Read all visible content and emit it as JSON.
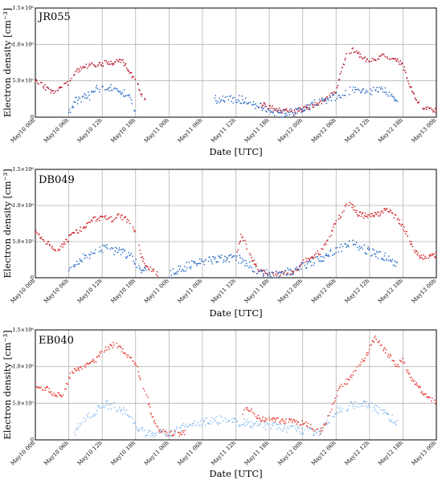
{
  "chart_data": [
    {
      "type": "scatter",
      "title": "JR055",
      "xlabel": "Date [UTC]",
      "ylabel": "Electron density [cm⁻³]",
      "ylim": [
        0,
        1500000
      ],
      "yticks": [
        "0",
        "5.0×10⁵",
        "1.0×10⁶",
        "1.5×10⁶"
      ],
      "xlim_hours": [
        0,
        72
      ],
      "xticks": [
        "May10 00h",
        "May10 06h",
        "May10 12h",
        "May10 18h",
        "May11 00h",
        "May11 06h",
        "May11 12h",
        "May11 18h",
        "May12 00h",
        "May12 06h",
        "May12 12h",
        "May12 18h",
        "May13 00h"
      ],
      "grid": true,
      "series": [
        {
          "color": "#b5172c",
          "x": [
            0,
            1,
            2,
            3,
            4,
            5,
            6,
            7,
            8,
            9,
            10,
            11,
            12,
            13,
            14,
            15,
            16,
            17,
            18,
            19,
            20,
            40,
            41,
            42,
            43,
            44,
            45,
            46,
            47,
            48,
            49,
            50,
            51,
            52,
            53,
            54,
            55,
            56,
            57,
            58,
            59,
            60,
            61,
            62,
            63,
            64,
            65,
            66,
            67,
            68,
            69,
            70,
            71,
            72
          ],
          "y": [
            500000,
            450000,
            400000,
            340000,
            380000,
            440000,
            460000,
            600000,
            660000,
            690000,
            740000,
            720000,
            720000,
            760000,
            740000,
            800000,
            740000,
            600000,
            540000,
            300000,
            200000,
            170000,
            160000,
            140000,
            110000,
            90000,
            80000,
            70000,
            80000,
            110000,
            130000,
            160000,
            200000,
            250000,
            300000,
            380000,
            650000,
            890000,
            920000,
            880000,
            800000,
            790000,
            800000,
            830000,
            850000,
            820000,
            800000,
            700000,
            500000,
            300000,
            200000,
            120000,
            100000,
            80000
          ]
        },
        {
          "color": "#2b6cc4",
          "x": [
            6,
            7,
            8,
            9,
            10,
            11,
            12,
            13,
            14,
            15,
            16,
            17,
            18,
            24,
            32,
            35,
            36,
            37,
            38,
            39,
            40,
            41,
            42,
            43,
            44,
            45,
            46,
            47,
            48,
            49,
            50,
            51,
            52,
            53,
            54,
            55,
            56,
            57,
            58,
            59,
            60,
            61,
            62,
            63,
            64,
            65
          ],
          "y": [
            80000,
            200000,
            260000,
            280000,
            300000,
            400000,
            380000,
            380000,
            400000,
            360000,
            330000,
            250000,
            120000,
            150000,
            240000,
            250000,
            240000,
            240000,
            200000,
            170000,
            150000,
            120000,
            90000,
            70000,
            50000,
            50000,
            60000,
            80000,
            110000,
            150000,
            180000,
            200000,
            220000,
            260000,
            290000,
            320000,
            340000,
            400000,
            360000,
            330000,
            350000,
            380000,
            380000,
            340000,
            280000,
            200000
          ]
        }
      ]
    },
    {
      "type": "scatter",
      "title": "DB049",
      "xlabel": "Date [UTC]",
      "ylabel": "Electron density [cm⁻³]",
      "ylim": [
        0,
        1500000
      ],
      "yticks": [
        "0",
        "5.0×10⁵",
        "1.0×10⁶",
        "1.5×10⁶"
      ],
      "xlim_hours": [
        0,
        72
      ],
      "xticks": [
        "May10 00h",
        "May10 06h",
        "May10 12h",
        "May10 18h",
        "May11 00h",
        "May11 06h",
        "May11 12h",
        "May11 18h",
        "May12 00h",
        "May12 06h",
        "May12 12h",
        "May12 18h",
        "May13 00h"
      ],
      "grid": true,
      "series": [
        {
          "color": "#d21f26",
          "x": [
            0,
            1,
            2,
            3,
            4,
            5,
            6,
            7,
            8,
            9,
            10,
            11,
            12,
            13,
            14,
            15,
            16,
            17,
            18,
            19,
            20,
            21,
            22,
            36,
            37,
            38,
            39,
            40,
            41,
            42,
            43,
            44,
            45,
            46,
            47,
            48,
            49,
            50,
            51,
            52,
            53,
            54,
            55,
            56,
            57,
            58,
            59,
            60,
            61,
            62,
            63,
            64,
            65,
            66,
            67,
            68,
            69,
            70,
            71,
            72
          ],
          "y": [
            620000,
            560000,
            500000,
            420000,
            400000,
            450000,
            550000,
            620000,
            660000,
            720000,
            800000,
            820000,
            830000,
            820000,
            800000,
            880000,
            820000,
            760000,
            600000,
            300000,
            150000,
            100000,
            50000,
            280000,
            600000,
            420000,
            250000,
            100000,
            60000,
            50000,
            50000,
            60000,
            60000,
            80000,
            120000,
            200000,
            260000,
            300000,
            350000,
            450000,
            600000,
            800000,
            880000,
            1050000,
            980000,
            880000,
            860000,
            860000,
            870000,
            880000,
            960000,
            900000,
            800000,
            700000,
            550000,
            400000,
            300000,
            280000,
            300000,
            320000
          ]
        },
        {
          "color": "#2b6cc4",
          "x": [
            6,
            7,
            8,
            9,
            10,
            11,
            12,
            13,
            14,
            15,
            16,
            17,
            18,
            19,
            20,
            24,
            25,
            26,
            27,
            28,
            29,
            30,
            31,
            32,
            33,
            34,
            35,
            36,
            37,
            38,
            39,
            40,
            41,
            42,
            43,
            44,
            45,
            46,
            47,
            48,
            49,
            50,
            51,
            52,
            53,
            54,
            55,
            56,
            57,
            58,
            59,
            60,
            61,
            62,
            63,
            64,
            65
          ],
          "y": [
            80000,
            200000,
            260000,
            300000,
            330000,
            360000,
            400000,
            400000,
            380000,
            360000,
            340000,
            300000,
            200000,
            120000,
            80000,
            40000,
            80000,
            120000,
            150000,
            180000,
            200000,
            220000,
            240000,
            250000,
            260000,
            270000,
            270000,
            260000,
            250000,
            200000,
            150000,
            100000,
            60000,
            50000,
            50000,
            60000,
            70000,
            90000,
            120000,
            160000,
            200000,
            230000,
            260000,
            300000,
            340000,
            380000,
            420000,
            480000,
            460000,
            420000,
            400000,
            360000,
            330000,
            300000,
            280000,
            240000,
            200000
          ]
        }
      ]
    },
    {
      "type": "scatter",
      "title": "EB040",
      "xlabel": "Date [UTC]",
      "ylabel": "Electron density [cm⁻³]",
      "ylim": [
        0,
        1500000
      ],
      "yticks": [
        "0",
        "5.0×10⁵",
        "1.0×10⁶",
        "1.5×10⁶"
      ],
      "xlim_hours": [
        0,
        72
      ],
      "xticks": [
        "May10 00h",
        "May10 06h",
        "May10 12h",
        "May10 18h",
        "May11 00h",
        "May11 06h",
        "May11 12h",
        "May11 18h",
        "May12 00h",
        "May12 06h",
        "May12 12h",
        "May12 18h",
        "May13 00h"
      ],
      "grid": true,
      "series": [
        {
          "color": "#e8392e",
          "x": [
            0,
            1,
            2,
            3,
            4,
            5,
            6,
            7,
            8,
            9,
            10,
            11,
            12,
            13,
            14,
            15,
            16,
            17,
            18,
            19,
            20,
            21,
            22,
            23,
            24,
            25,
            26,
            27,
            37,
            38,
            39,
            40,
            41,
            42,
            43,
            44,
            45,
            46,
            47,
            48,
            49,
            50,
            51,
            52,
            53,
            54,
            55,
            56,
            57,
            58,
            59,
            60,
            61,
            62,
            63,
            64,
            65,
            66,
            67,
            68,
            69,
            70,
            71,
            72
          ],
          "y": [
            760000,
            720000,
            700000,
            640000,
            620000,
            600000,
            850000,
            950000,
            980000,
            1000000,
            1050000,
            1100000,
            1200000,
            1250000,
            1300000,
            1280000,
            1200000,
            1120000,
            1050000,
            800000,
            600000,
            300000,
            150000,
            100000,
            80000,
            80000,
            90000,
            100000,
            350000,
            420000,
            380000,
            300000,
            280000,
            300000,
            280000,
            260000,
            250000,
            260000,
            240000,
            230000,
            200000,
            150000,
            100000,
            200000,
            400000,
            600000,
            750000,
            800000,
            900000,
            1000000,
            1100000,
            1250000,
            1400000,
            1300000,
            1200000,
            1100000,
            1000000,
            1100000,
            900000,
            800000,
            700000,
            600000,
            550000,
            500000
          ]
        },
        {
          "color": "#8dbdf0",
          "x": [
            7,
            8,
            9,
            10,
            11,
            12,
            13,
            14,
            15,
            16,
            17,
            18,
            19,
            20,
            21,
            22,
            23,
            24,
            25,
            26,
            27,
            28,
            29,
            30,
            31,
            32,
            33,
            34,
            35,
            36,
            37,
            38,
            39,
            40,
            41,
            42,
            43,
            44,
            45,
            46,
            47,
            48,
            49,
            50,
            51,
            52,
            53,
            54,
            55,
            56,
            57,
            58,
            59,
            60,
            61,
            62,
            63,
            64,
            65
          ],
          "y": [
            100000,
            200000,
            280000,
            350000,
            400000,
            450000,
            480000,
            460000,
            420000,
            380000,
            300000,
            200000,
            120000,
            80000,
            70000,
            80000,
            90000,
            100000,
            120000,
            150000,
            180000,
            200000,
            220000,
            240000,
            250000,
            260000,
            270000,
            270000,
            260000,
            250000,
            240000,
            230000,
            220000,
            210000,
            200000,
            190000,
            180000,
            170000,
            160000,
            150000,
            140000,
            130000,
            120000,
            110000,
            100000,
            200000,
            300000,
            380000,
            420000,
            450000,
            480000,
            500000,
            480000,
            450000,
            420000,
            400000,
            350000,
            300000,
            250000
          ]
        }
      ]
    }
  ]
}
